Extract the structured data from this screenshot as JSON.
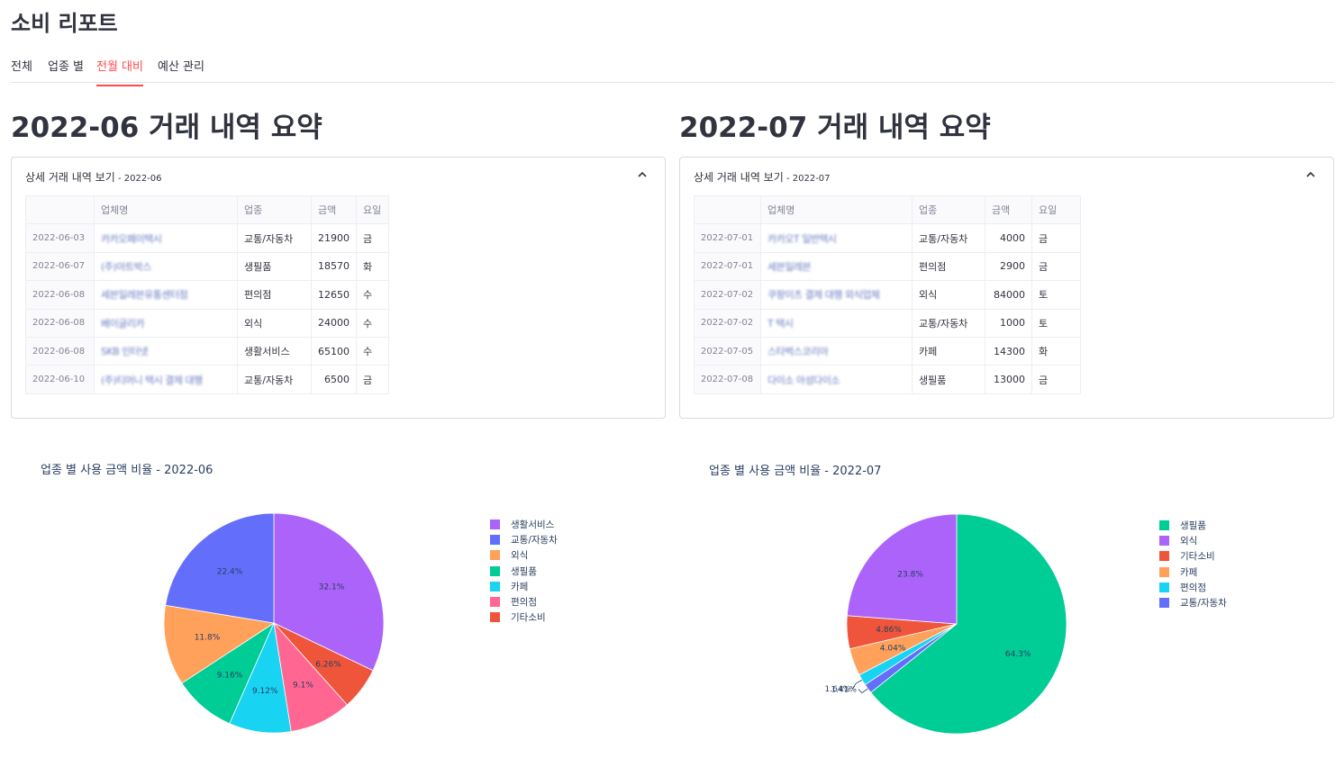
{
  "app": {
    "title": "소비 리포트"
  },
  "tabs": [
    "전체",
    "업종 별",
    "전월 대비",
    "예산 관리"
  ],
  "active_tab": 2,
  "left": {
    "heading": "2022-06 거래 내역 요약",
    "expander_label": "상세 거래 내역 보기",
    "expander_suffix": " - 2022-06",
    "table": {
      "columns": [
        "",
        "업체명",
        "업종",
        "금액",
        "요일"
      ],
      "rows": [
        [
          "2022-06-03",
          "카카오페이택시",
          "교통/자동차",
          "21900",
          "금"
        ],
        [
          "2022-06-07",
          "(주)아트박스",
          "생필품",
          "18570",
          "화"
        ],
        [
          "2022-06-08",
          "세븐일레븐유통센터점",
          "편의점",
          "12650",
          "수"
        ],
        [
          "2022-06-08",
          "베이글리카",
          "외식",
          "24000",
          "수"
        ],
        [
          "2022-06-08",
          "SKB 인터넷",
          "생활서비스",
          "65100",
          "수"
        ],
        [
          "2022-06-10",
          "(주)티머니 택시 결제 대행",
          "교통/자동차",
          "6500",
          "금"
        ]
      ]
    },
    "chart_title": "업종 별 사용 금액 비율 - 2022-06"
  },
  "right": {
    "heading": "2022-07 거래 내역 요약",
    "expander_label": "상세 거래 내역 보기",
    "expander_suffix": " - 2022-07",
    "table": {
      "columns": [
        "",
        "업체명",
        "업종",
        "금액",
        "요일"
      ],
      "rows": [
        [
          "2022-07-01",
          "카카오T 일반택시",
          "교통/자동차",
          "4000",
          "금"
        ],
        [
          "2022-07-01",
          "세븐일레븐",
          "편의점",
          "2900",
          "금"
        ],
        [
          "2022-07-02",
          "쿠팡이츠 결제 대행 외식업체",
          "외식",
          "84000",
          "토"
        ],
        [
          "2022-07-02",
          "T 택시",
          "교통/자동차",
          "1000",
          "토"
        ],
        [
          "2022-07-05",
          "스타벅스코리아",
          "카페",
          "14300",
          "화"
        ],
        [
          "2022-07-08",
          "다이소 아성다이소",
          "생필품",
          "13000",
          "금"
        ]
      ]
    },
    "chart_title": "업종 별 사용 금액 비율 - 2022-07"
  },
  "chart_data": [
    {
      "type": "pie",
      "title": "업종 별 사용 금액 비율 - 2022-06",
      "categories": [
        "생활서비스",
        "기타소비",
        "편의점",
        "카페",
        "생필품",
        "외식",
        "교통/자동차"
      ],
      "values": [
        32.1,
        6.26,
        9.1,
        9.12,
        9.16,
        11.8,
        22.4
      ],
      "labels": [
        "32.1%",
        "6.26%",
        "9.1%",
        "9.12%",
        "9.16%",
        "11.8%",
        "22.4%"
      ],
      "colors": [
        "#ab63fa",
        "#ef553b",
        "#ff6692",
        "#19d3f3",
        "#00cc96",
        "#ffa15a",
        "#636efa"
      ],
      "legend": [
        "생활서비스",
        "교통/자동차",
        "외식",
        "생필품",
        "카페",
        "편의점",
        "기타소비"
      ],
      "legend_colors": [
        "#ab63fa",
        "#636efa",
        "#ffa15a",
        "#00cc96",
        "#19d3f3",
        "#ff6692",
        "#ef553b"
      ],
      "legend_position": "right"
    },
    {
      "type": "pie",
      "title": "업종 별 사용 금액 비율 - 2022-07",
      "categories": [
        "생필품",
        "교통/자동차",
        "편의점",
        "카페",
        "기타소비",
        "외식"
      ],
      "values": [
        64.3,
        1.41,
        1.64,
        4.04,
        4.86,
        23.8
      ],
      "labels": [
        "64.3%",
        "1.41%",
        "1.64%",
        "4.04%",
        "4.86%",
        "23.8%"
      ],
      "colors": [
        "#00cc96",
        "#636efa",
        "#19d3f3",
        "#ffa15a",
        "#ef553b",
        "#ab63fa"
      ],
      "legend": [
        "생필품",
        "외식",
        "기타소비",
        "카페",
        "편의점",
        "교통/자동차"
      ],
      "legend_colors": [
        "#00cc96",
        "#ab63fa",
        "#ef553b",
        "#ffa15a",
        "#19d3f3",
        "#636efa"
      ],
      "legend_position": "right"
    }
  ]
}
